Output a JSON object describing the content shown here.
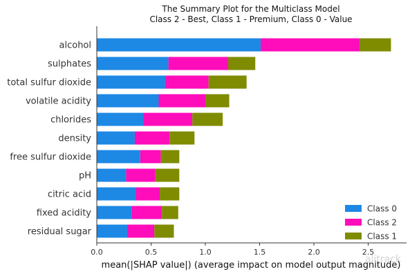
{
  "chart_data": {
    "type": "bar",
    "orientation": "horizontal",
    "stacked": true,
    "title_line1": "The Summary Plot for the Multiclass Model",
    "title_line2": "Class 2 - Best, Class 1 - Premium, Class 0 - Value",
    "xlabel": "mean(|SHAP value|) (average impact on model output magnitude)",
    "ylabel": "",
    "xlim": [
      0,
      2.85
    ],
    "xticks": [
      "0.0",
      "0.5",
      "1.0",
      "1.5",
      "2.0",
      "2.5"
    ],
    "categories": [
      "alcohol",
      "sulphates",
      "total sulfur dioxide",
      "volatile acidity",
      "chlorides",
      "density",
      "free sulfur dioxide",
      "pH",
      "citric acid",
      "fixed acidity",
      "residual sugar"
    ],
    "series": [
      {
        "name": "Class 0",
        "color": "#1e88e5",
        "values": [
          1.51,
          0.66,
          0.63,
          0.57,
          0.43,
          0.35,
          0.4,
          0.27,
          0.36,
          0.32,
          0.28
        ]
      },
      {
        "name": "Class 2",
        "color": "#ff0dbb",
        "values": [
          0.91,
          0.55,
          0.4,
          0.43,
          0.45,
          0.32,
          0.19,
          0.27,
          0.22,
          0.28,
          0.25
        ]
      },
      {
        "name": "Class 1",
        "color": "#7f8c00",
        "values": [
          0.29,
          0.25,
          0.35,
          0.22,
          0.28,
          0.23,
          0.17,
          0.22,
          0.18,
          0.15,
          0.18
        ]
      }
    ],
    "legend_order": [
      "Class 0",
      "Class 2",
      "Class 1"
    ],
    "legend_position": "bottom-right",
    "grid": false
  },
  "watermark": "alitrack"
}
